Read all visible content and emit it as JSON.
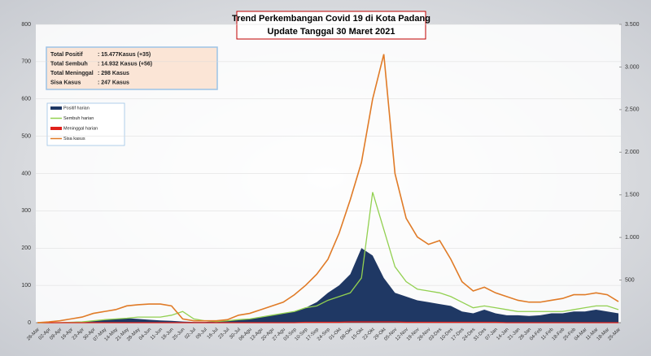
{
  "chart_data": {
    "type": "line",
    "title": "Trend Perkembangan Covid 19 di Kota Padang",
    "subtitle": "Update Tanggal  30 Maret 2021",
    "info": [
      {
        "label": "Total Positif",
        "text": ": 15.477Kasus (+35)"
      },
      {
        "label": "Total Sembuh",
        "text": ": 14.932 Kasus (+56)"
      },
      {
        "label": "Total Meninggal",
        "text": ":     298  Kasus"
      },
      {
        "label": "Sisa Kasus",
        "text": ":      247 Kasus"
      }
    ],
    "categories": [
      "26-Mar",
      "02-Apr",
      "09-Apr",
      "16-Apr",
      "23-Apr",
      "30-Apr",
      "07-May",
      "14-May",
      "21-May",
      "28-May",
      "04-Jun",
      "11-Jun",
      "18-Jun",
      "25-Jun",
      "02-Jul",
      "09-Jul",
      "16-Jul",
      "23-Jul",
      "30-Jul",
      "06-Agu",
      "13-Agu",
      "20-Agu",
      "27-Agu",
      "03-Sep",
      "10-Sep",
      "17-Sep",
      "24-Sep",
      "01-Okt",
      "08-Okt",
      "15-Okt",
      "22-Okt",
      "29-Okt",
      "05-Nov",
      "12-Nov",
      "19-Nov",
      "26-Nov",
      "03-Des",
      "10-Des",
      "17-Des",
      "24-Des",
      "31-Des",
      "07-Jan",
      "14-Jan",
      "21-Jan",
      "28-Jan",
      "04-Feb",
      "11-Feb",
      "18-Feb",
      "25-Feb",
      "04-Mar",
      "11-Mar",
      "18-Mar",
      "25-Mar"
    ],
    "series": [
      {
        "name": "Positif harian",
        "color": "#1f3864",
        "kind": "area",
        "values": [
          0,
          0,
          1,
          2,
          3,
          5,
          8,
          10,
          12,
          10,
          8,
          6,
          5,
          3,
          2,
          2,
          3,
          5,
          8,
          10,
          15,
          20,
          25,
          30,
          40,
          55,
          80,
          100,
          130,
          200,
          180,
          120,
          80,
          70,
          60,
          55,
          50,
          45,
          30,
          25,
          35,
          25,
          20,
          20,
          18,
          20,
          25,
          25,
          30,
          30,
          35,
          30,
          25
        ]
      },
      {
        "name": "Sembuh harian",
        "color": "#92d050",
        "kind": "line",
        "values": [
          0,
          0,
          0,
          1,
          2,
          5,
          8,
          10,
          12,
          15,
          15,
          15,
          20,
          30,
          10,
          5,
          3,
          5,
          8,
          10,
          15,
          20,
          25,
          30,
          40,
          45,
          60,
          70,
          80,
          120,
          350,
          250,
          150,
          110,
          90,
          85,
          80,
          70,
          55,
          40,
          45,
          40,
          35,
          30,
          30,
          30,
          30,
          30,
          35,
          40,
          45,
          45,
          35
        ]
      },
      {
        "name": "Meninggal harian",
        "color": "#e0201b",
        "kind": "line",
        "values": [
          0,
          0,
          0,
          0,
          0,
          0,
          0,
          0,
          0,
          0,
          0,
          0,
          0,
          0,
          0,
          0,
          0,
          0,
          0,
          0,
          0,
          0,
          0,
          0,
          1,
          1,
          1,
          1,
          2,
          2,
          2,
          2,
          2,
          1,
          1,
          1,
          1,
          1,
          1,
          1,
          1,
          1,
          0,
          0,
          0,
          0,
          0,
          0,
          0,
          0,
          0,
          0,
          0
        ]
      },
      {
        "name": "Sisa kasus",
        "color": "#e07b27",
        "kind": "line",
        "axis": "y2",
        "values": [
          0,
          9,
          22,
          44,
          66,
          109,
          131,
          153,
          197,
          210,
          219,
          219,
          197,
          44,
          22,
          22,
          22,
          35,
          88,
          109,
          153,
          197,
          241,
          328,
          438,
          569,
          744,
          1050,
          1444,
          1881,
          2625,
          3150,
          1750,
          1225,
          1006,
          919,
          963,
          744,
          481,
          372,
          416,
          350,
          306,
          263,
          241,
          241,
          263,
          284,
          328,
          328,
          350,
          328,
          247
        ]
      }
    ],
    "ylim": [
      0,
      800
    ],
    "yticks": [
      0,
      100,
      200,
      300,
      400,
      500,
      600,
      700,
      800
    ],
    "y2lim": [
      0,
      3500
    ],
    "y2ticks": [
      500,
      {
        "value": 1000,
        "label": "1.000"
      },
      {
        "value": 1500,
        "label": "1.500"
      },
      {
        "value": 2000,
        "label": "2.000"
      },
      {
        "value": 2500,
        "label": "2.500"
      },
      {
        "value": 3000,
        "label": "3.000"
      },
      {
        "value": 3500,
        "label": "3.500"
      }
    ],
    "grid": true
  }
}
